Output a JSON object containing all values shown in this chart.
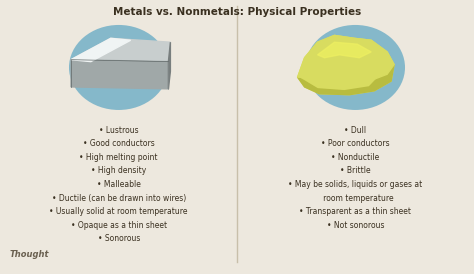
{
  "title": "Metals vs. Nonmetals: Physical Properties",
  "background_color": "#ede8de",
  "divider_color": "#c8bfaa",
  "title_color": "#3a3020",
  "text_color": "#3a3020",
  "metal_properties": [
    "• Lustrous",
    "• Good conductors",
    "• High melting point",
    "• High density",
    "• Malleable",
    "• Ductile (can be drawn into wires)",
    "• Usually solid at room temperature",
    "• Opaque as a thin sheet",
    "• Sonorous"
  ],
  "nonmetal_properties": [
    "• Dull",
    "• Poor conductors",
    "• Nonductile",
    "• Brittle",
    "• May be solids, liquids or gases at\n   room temperature",
    "• Transparent as a thin sheet",
    "• Not sonorous"
  ],
  "circle_color": "#7ab3c8",
  "circle_color_alpha": 0.9,
  "metal_top_color": "#c8cece",
  "metal_top_light_color": "#e8ecec",
  "metal_front_color": "#a0a8a8",
  "metal_right_color": "#787e7e",
  "metal_shine_color": "#f0f4f4",
  "nonmetal_color": "#d8dc60",
  "nonmetal_shadow_color": "#b8bc40",
  "nonmetal_highlight_color": "#eef060",
  "footnote": "Thought",
  "footnote_color": "#6a6050"
}
